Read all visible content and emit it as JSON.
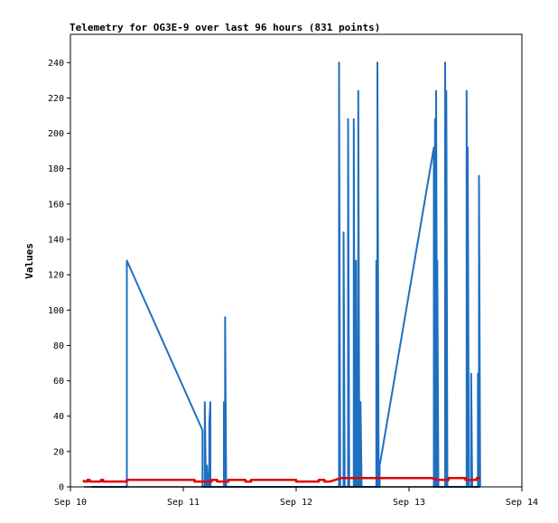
{
  "chart_data": {
    "type": "line",
    "title": "Telemetry for OG3E-9 over last 96 hours (831 points)",
    "xlabel": "",
    "ylabel": "Values",
    "x_ticks": [
      "Sep 10",
      "Sep 11",
      "Sep 12",
      "Sep 13",
      "Sep 14"
    ],
    "x_range_days": [
      0,
      4
    ],
    "y_ticks": [
      0,
      20,
      40,
      60,
      80,
      100,
      120,
      140,
      160,
      180,
      200,
      220,
      240
    ],
    "ylim": [
      0,
      256
    ],
    "grid": false,
    "series": [
      {
        "color": "#1f6fbf",
        "points": [
          [
            0.19,
            0
          ],
          [
            0.5,
            0
          ],
          [
            0.5,
            128
          ],
          [
            1.17,
            32
          ],
          [
            1.17,
            0
          ],
          [
            1.19,
            0
          ],
          [
            1.19,
            48
          ],
          [
            1.2,
            0
          ],
          [
            1.21,
            0
          ],
          [
            1.21,
            12
          ],
          [
            1.22,
            0
          ],
          [
            1.23,
            0
          ],
          [
            1.23,
            36
          ],
          [
            1.24,
            48
          ],
          [
            1.24,
            0
          ],
          [
            1.36,
            0
          ],
          [
            1.36,
            48
          ],
          [
            1.37,
            0
          ],
          [
            1.37,
            96
          ],
          [
            1.38,
            0
          ],
          [
            2.38,
            0
          ],
          [
            2.38,
            240
          ],
          [
            2.39,
            0
          ],
          [
            2.42,
            0
          ],
          [
            2.42,
            144
          ],
          [
            2.43,
            0
          ],
          [
            2.46,
            0
          ],
          [
            2.46,
            208
          ],
          [
            2.47,
            0
          ],
          [
            2.51,
            0
          ],
          [
            2.51,
            208
          ],
          [
            2.52,
            0
          ],
          [
            2.53,
            0
          ],
          [
            2.53,
            128
          ],
          [
            2.54,
            0
          ],
          [
            2.55,
            0
          ],
          [
            2.55,
            224
          ],
          [
            2.56,
            0
          ],
          [
            2.57,
            0
          ],
          [
            2.57,
            48
          ],
          [
            2.58,
            0
          ],
          [
            2.71,
            0
          ],
          [
            2.71,
            128
          ],
          [
            2.72,
            0
          ],
          [
            2.72,
            0
          ],
          [
            2.72,
            240
          ],
          [
            2.73,
            16
          ],
          [
            2.73,
            0
          ],
          [
            2.74,
            0
          ],
          [
            2.74,
            12
          ],
          [
            3.22,
            192
          ],
          [
            3.22,
            0
          ],
          [
            3.23,
            0
          ],
          [
            3.23,
            208
          ],
          [
            3.24,
            0
          ],
          [
            3.24,
            0
          ],
          [
            3.24,
            224
          ],
          [
            3.25,
            0
          ],
          [
            3.25,
            0
          ],
          [
            3.25,
            128
          ],
          [
            3.26,
            0
          ],
          [
            3.32,
            0
          ],
          [
            3.32,
            240
          ],
          [
            3.33,
            0
          ],
          [
            3.33,
            0
          ],
          [
            3.33,
            224
          ],
          [
            3.34,
            0
          ],
          [
            3.51,
            0
          ],
          [
            3.51,
            224
          ],
          [
            3.52,
            0
          ],
          [
            3.52,
            0
          ],
          [
            3.52,
            192
          ],
          [
            3.53,
            0
          ],
          [
            3.55,
            0
          ],
          [
            3.55,
            64
          ],
          [
            3.56,
            0
          ],
          [
            3.61,
            0
          ],
          [
            3.61,
            64
          ],
          [
            3.62,
            0
          ],
          [
            3.62,
            0
          ],
          [
            3.62,
            176
          ],
          [
            3.63,
            0
          ]
        ]
      },
      {
        "color": "#e00000",
        "points": [
          [
            0.12,
            4
          ],
          [
            0.12,
            3
          ],
          [
            0.15,
            3
          ],
          [
            0.15,
            4
          ],
          [
            0.17,
            4
          ],
          [
            0.17,
            3
          ],
          [
            0.27,
            3
          ],
          [
            0.27,
            4
          ],
          [
            0.29,
            4
          ],
          [
            0.29,
            3
          ],
          [
            0.5,
            3
          ],
          [
            0.5,
            4
          ],
          [
            1.1,
            4
          ],
          [
            1.1,
            3
          ],
          [
            1.25,
            3
          ],
          [
            1.25,
            4
          ],
          [
            1.3,
            4
          ],
          [
            1.3,
            3
          ],
          [
            1.4,
            3
          ],
          [
            1.4,
            4
          ],
          [
            1.55,
            4
          ],
          [
            1.55,
            3
          ],
          [
            1.6,
            3
          ],
          [
            1.6,
            4
          ],
          [
            2.0,
            4
          ],
          [
            2.0,
            3
          ],
          [
            2.2,
            3
          ],
          [
            2.2,
            4
          ],
          [
            2.25,
            4
          ],
          [
            2.25,
            3
          ],
          [
            2.3,
            3
          ],
          [
            2.4,
            5
          ],
          [
            3.2,
            5
          ],
          [
            3.25,
            4
          ],
          [
            3.35,
            4
          ],
          [
            3.35,
            5
          ],
          [
            3.5,
            5
          ],
          [
            3.5,
            4
          ],
          [
            3.6,
            4
          ],
          [
            3.6,
            5
          ],
          [
            3.63,
            5
          ]
        ]
      },
      {
        "color": "#000000",
        "points": [
          [
            0.12,
            0
          ],
          [
            3.63,
            0
          ]
        ]
      }
    ]
  }
}
